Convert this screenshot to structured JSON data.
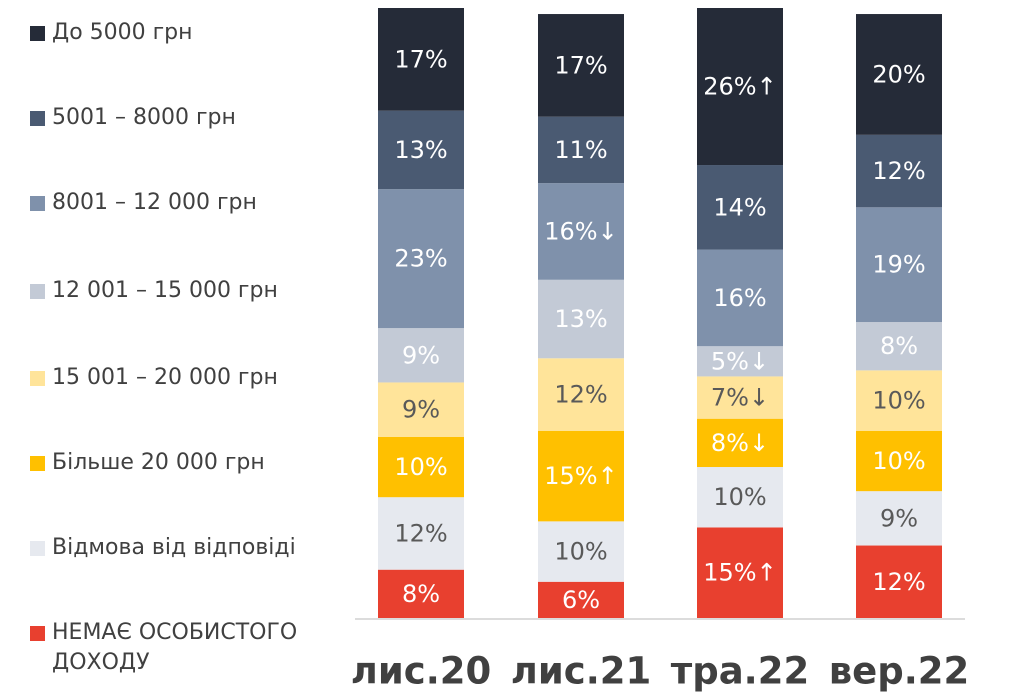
{
  "chart_data": {
    "type": "stacked_bar",
    "categories": [
      "лис.20",
      "лис.21",
      "тра.22",
      "вер.22"
    ],
    "ylim": [
      0,
      101
    ],
    "series": [
      {
        "name": "НЕМАЄ ОСОБИСТОГО ДОХОДУ",
        "color": "#e8402f",
        "label_color": "#ffffff",
        "values": [
          8,
          6,
          15,
          12
        ],
        "value_labels": [
          "8%",
          "6%",
          "15%↑",
          "12%"
        ]
      },
      {
        "name": "Відмова від відповіді",
        "color": "#e6e9ef",
        "label_color": "#595959",
        "values": [
          12,
          10,
          10,
          9
        ],
        "value_labels": [
          "12%",
          "10%",
          "10%",
          "9%"
        ]
      },
      {
        "name": "Більше 20 000 грн",
        "color": "#ffc000",
        "label_color": "#ffffff",
        "values": [
          10,
          15,
          8,
          10
        ],
        "value_labels": [
          "10%",
          "15%↑",
          "8%↓",
          "10%"
        ]
      },
      {
        "name": "15 001 – 20 000 грн",
        "color": "#ffe49a",
        "label_color": "#595959",
        "values": [
          9,
          12,
          7,
          10
        ],
        "value_labels": [
          "9%",
          "12%",
          "7%↓",
          "10%"
        ]
      },
      {
        "name": "12 001 – 15 000 грн",
        "color": "#c3cad6",
        "label_color": "#ffffff",
        "values": [
          9,
          13,
          5,
          8
        ],
        "value_labels": [
          "9%",
          "13%",
          "5%↓",
          "8%"
        ]
      },
      {
        "name": "8001 – 12 000 грн",
        "color": "#7f91ab",
        "label_color": "#ffffff",
        "values": [
          23,
          16,
          16,
          19
        ],
        "value_labels": [
          "23%",
          "16%↓",
          "16%",
          "19%"
        ]
      },
      {
        "name": "5001 – 8000 грн",
        "color": "#4a5a72",
        "label_color": "#ffffff",
        "values": [
          13,
          11,
          14,
          12
        ],
        "value_labels": [
          "13%",
          "11%",
          "14%",
          "12%"
        ]
      },
      {
        "name": "До 5000 грн",
        "color": "#252b38",
        "label_color": "#ffffff",
        "values": [
          17,
          17,
          26,
          20
        ],
        "value_labels": [
          "17%",
          "17%",
          "26%↑",
          "20%"
        ]
      }
    ]
  }
}
